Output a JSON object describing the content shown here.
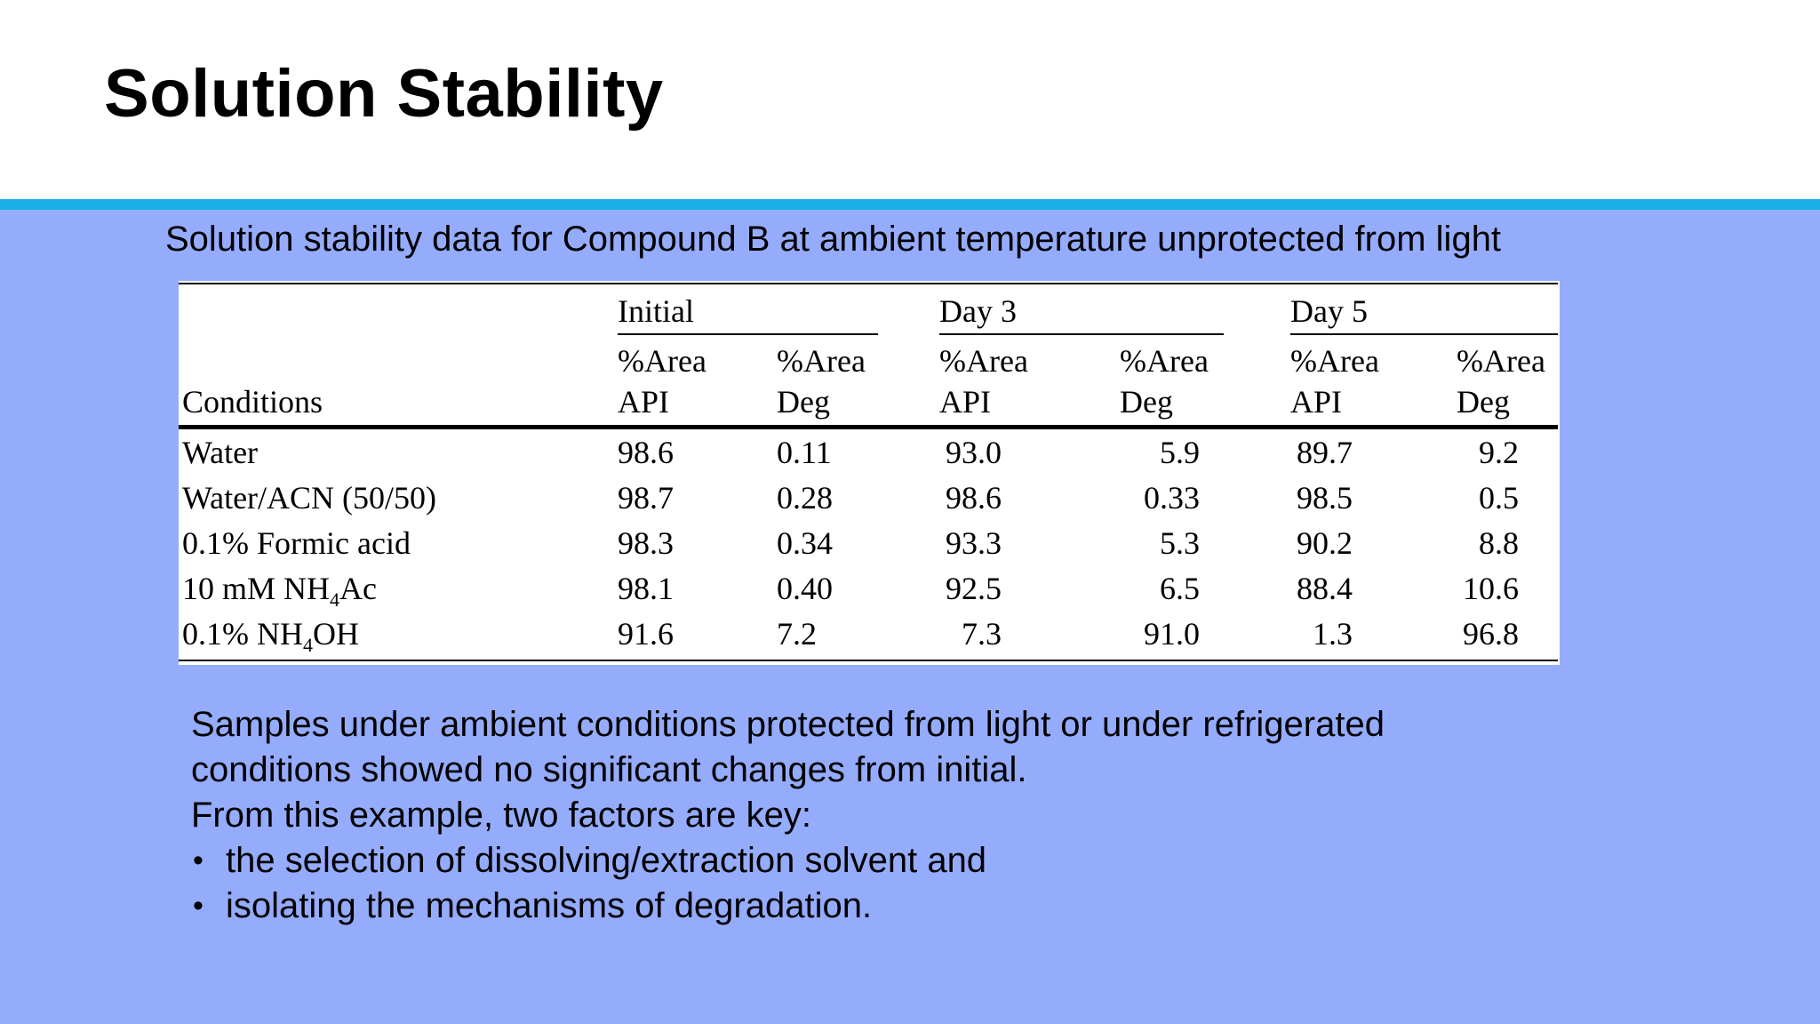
{
  "title": "Solution Stability",
  "caption": "Solution stability data for Compound B at ambient temperature unprotected from light",
  "colors": {
    "accent_bar": "#1ab0e6",
    "content_background": "#95acfd",
    "header_background": "#ffffff",
    "text": "#000000"
  },
  "table": {
    "groups": [
      "Initial",
      "Day 3",
      "Day 5"
    ],
    "subheaders": [
      {
        "line1": "%Area",
        "line2": "API"
      },
      {
        "line1": "%Area",
        "line2": "Deg"
      },
      {
        "line1": "%Area",
        "line2": "API"
      },
      {
        "line1": "%Area",
        "line2": "Deg"
      },
      {
        "line1": "%Area",
        "line2": "API"
      },
      {
        "line1": "%Area",
        "line2": "Deg"
      }
    ],
    "conditions_header": "Conditions",
    "rows": [
      {
        "condition": "Water",
        "values": [
          "98.6",
          "0.11",
          "93.0",
          "5.9",
          "89.7",
          "9.2"
        ]
      },
      {
        "condition": "Water/ACN (50/50)",
        "values": [
          "98.7",
          "0.28",
          "98.6",
          "0.33",
          "98.5",
          "0.5"
        ]
      },
      {
        "condition": "0.1% Formic acid",
        "values": [
          "98.3",
          "0.34",
          "93.3",
          "5.3",
          "90.2",
          "8.8"
        ]
      },
      {
        "condition_prefix": "10 mM NH",
        "condition_sub": "4",
        "condition_suffix": "Ac",
        "values": [
          "98.1",
          "0.40",
          "92.5",
          "6.5",
          "88.4",
          "10.6"
        ]
      },
      {
        "condition_prefix": "0.1% NH",
        "condition_sub": "4",
        "condition_suffix": "OH",
        "values": [
          "91.6",
          "7.2",
          "7.3",
          "91.0",
          "1.3",
          "96.8"
        ]
      }
    ]
  },
  "body": {
    "paragraph_line1": "Samples under ambient conditions protected from light or under refrigerated",
    "paragraph_line2": "conditions showed no significant changes from initial.",
    "key_intro": "From this example, two factors are key:",
    "bullet_symbol": "•",
    "bullets": [
      "the selection of dissolving/extraction solvent and",
      "isolating the mechanisms of degradation."
    ]
  }
}
